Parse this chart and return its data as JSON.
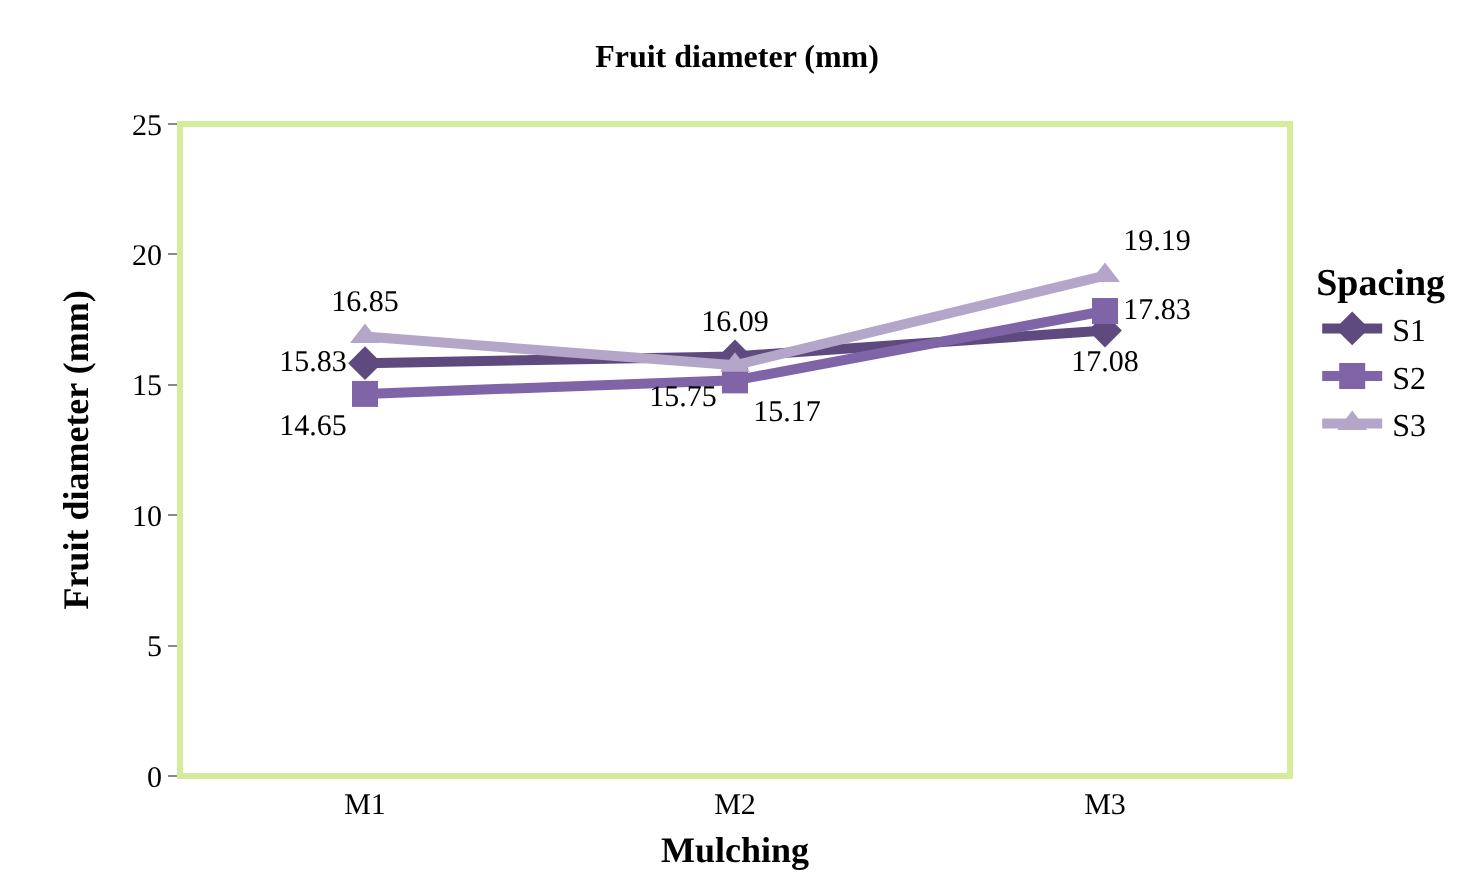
{
  "chart_data": {
    "type": "line",
    "title": "Fruit diameter (mm)",
    "xlabel": "Mulching",
    "ylabel": "Fruit diameter (mm)",
    "legend_title": "Spacing",
    "categories": [
      "M1",
      "M2",
      "M3"
    ],
    "series": [
      {
        "name": "S1",
        "color": "#5e4a7e",
        "marker": "diamond",
        "values": [
          15.83,
          16.09,
          17.08
        ]
      },
      {
        "name": "S2",
        "color": "#8064a8",
        "marker": "square",
        "values": [
          14.65,
          15.17,
          17.83
        ]
      },
      {
        "name": "S3",
        "color": "#b3a6c9",
        "marker": "triangle",
        "values": [
          16.85,
          15.75,
          19.19
        ]
      }
    ],
    "ylim": [
      0,
      25
    ],
    "yticks": [
      0,
      5,
      10,
      15,
      20,
      25
    ],
    "grid": false,
    "legend": "right",
    "data_labels": true,
    "line_style": "solid"
  }
}
